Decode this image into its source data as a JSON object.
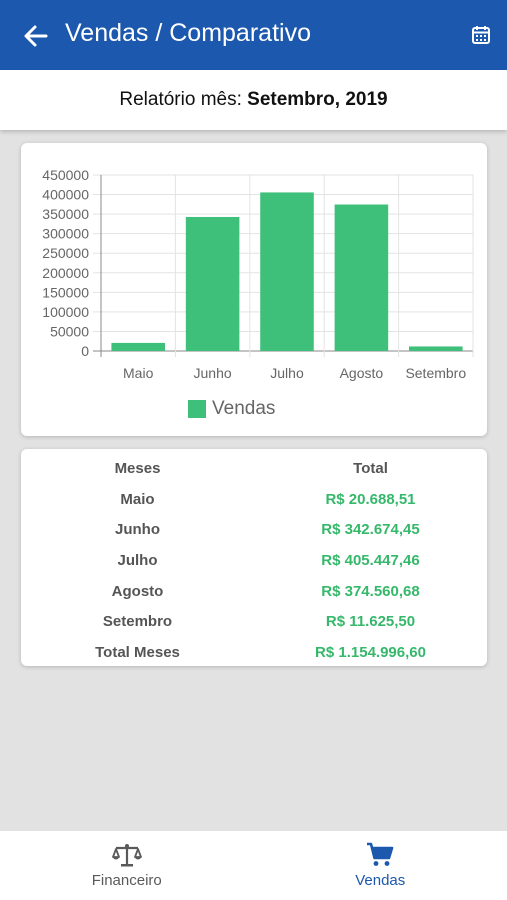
{
  "header": {
    "title": "Vendas / Comparativo",
    "back_icon": "back-arrow-icon",
    "calendar_icon": "calendar-icon"
  },
  "report": {
    "prefix": "Relatório mês:",
    "month": "Setembro, 2019"
  },
  "chart_data": {
    "type": "bar",
    "categories": [
      "Maio",
      "Junho",
      "Julho",
      "Agosto",
      "Setembro"
    ],
    "series": [
      {
        "name": "Vendas",
        "values": [
          20688.51,
          342674.45,
          405447.46,
          374560.68,
          11625.5
        ],
        "color": "#3ec07b"
      }
    ],
    "ylim": [
      0,
      450000
    ],
    "yticks": [
      "0",
      "50000",
      "100000",
      "150000",
      "200000",
      "250000",
      "300000",
      "350000",
      "400000",
      "450000"
    ],
    "grid": true,
    "legend": "bottom"
  },
  "table": {
    "headers": [
      "Meses",
      "Total"
    ],
    "rows": [
      {
        "month": "Maio",
        "total": "R$ 20.688,51"
      },
      {
        "month": "Junho",
        "total": "R$ 342.674,45"
      },
      {
        "month": "Julho",
        "total": "R$ 405.447,46"
      },
      {
        "month": "Agosto",
        "total": "R$ 374.560,68"
      },
      {
        "month": "Setembro",
        "total": "R$ 11.625,50"
      },
      {
        "month": "Total Meses",
        "total": "R$ 1.154.996,60"
      }
    ]
  },
  "nav": {
    "items": [
      {
        "label": "Financeiro",
        "icon": "scale-icon",
        "active": false
      },
      {
        "label": "Vendas",
        "icon": "cart-icon",
        "active": true
      }
    ],
    "active_color": "#1c58ad"
  }
}
